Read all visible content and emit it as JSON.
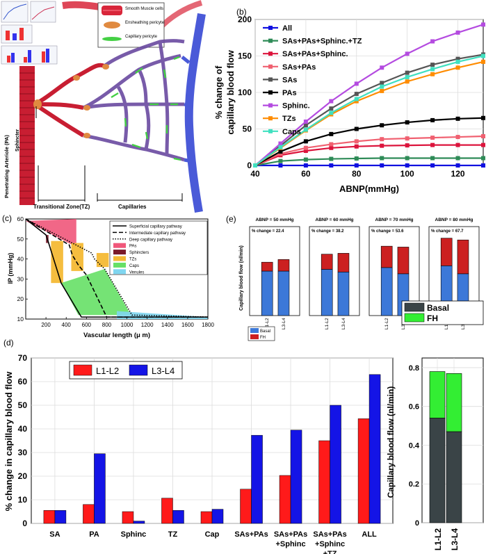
{
  "colors": {
    "all": "#1010e0",
    "sas_pas_sph_tz": "#2e8b57",
    "sas_pas_sph": "#dc143c",
    "sas_pas": "#f06070",
    "sas": "#555555",
    "pas": "#000000",
    "sphinc": "#b44be0",
    "tzs": "#ff8c00",
    "caps": "#40e0c0",
    "red": "#ff1a1a",
    "blue": "#1414e6",
    "basal_e": "#3c78d8",
    "fh_e": "#cc2020",
    "basal_f": "#3a4447",
    "fh_f": "#33ee33",
    "pa_fill": "#f0577a",
    "sph_fill": "#7a1a2a",
    "tz_fill": "#f4b935",
    "cap_fill": "#66e066",
    "ven_fill": "#7fd6f0"
  },
  "panel_a": {
    "labels": {
      "smooth": "Smooth Muscle cells",
      "ensheath": "Ensheathing pericyte",
      "cap_peri": "Capillary pericyte",
      "pa": "Penetrating Arteriole (PA)",
      "sphincter": "Sphincter",
      "tz": "Transitional Zone(TZ)",
      "caps": "Capillaries"
    }
  },
  "panel_b": {
    "letter": "(b)",
    "chart_data": {
      "type": "line",
      "xlabel": "ABNP(mmHg)",
      "ylabel_1": "% change of",
      "ylabel_2": "capillary blood flow",
      "xlim": [
        40,
        130
      ],
      "ylim": [
        0,
        200
      ],
      "xticks": [
        "40",
        "60",
        "80",
        "100",
        "120"
      ],
      "yticks": [
        "0",
        "50",
        "100",
        "150",
        "200"
      ],
      "x": [
        40,
        50,
        60,
        70,
        80,
        90,
        100,
        110,
        120,
        130
      ],
      "series": [
        {
          "name": "All",
          "color": "#1010e0",
          "marker": "square",
          "values": [
            0,
            0,
            0,
            0,
            0,
            0,
            0,
            0,
            0,
            0
          ]
        },
        {
          "name": "SAs+PAs+Sphinc.+TZ",
          "color": "#2e8b57",
          "marker": "square",
          "values": [
            0,
            6,
            8,
            9,
            9.5,
            10,
            10,
            10,
            10,
            10
          ]
        },
        {
          "name": "SAs+PAs+Sphinc.",
          "color": "#dc143c",
          "marker": "square",
          "values": [
            0,
            14,
            20,
            24,
            26,
            27,
            27.5,
            28,
            28,
            28
          ]
        },
        {
          "name": "SAs+PAs",
          "color": "#f06070",
          "marker": "square",
          "values": [
            0,
            16,
            24,
            29,
            33,
            36,
            37,
            38,
            39,
            40
          ]
        },
        {
          "name": "SAs",
          "color": "#555555",
          "marker": "square",
          "values": [
            0,
            27,
            55,
            78,
            98,
            113,
            127,
            138,
            146,
            152
          ]
        },
        {
          "name": "PAs",
          "color": "#000000",
          "marker": "square",
          "values": [
            0,
            19,
            33,
            43,
            50,
            55,
            59,
            62,
            64,
            65
          ]
        },
        {
          "name": "Sphinc.",
          "color": "#b44be0",
          "marker": "square",
          "values": [
            0,
            30,
            60,
            88,
            112,
            134,
            153,
            170,
            182,
            193
          ]
        },
        {
          "name": "TZs",
          "color": "#ff8c00",
          "marker": "square",
          "values": [
            0,
            24,
            48,
            70,
            88,
            102,
            115,
            125,
            134,
            142
          ]
        },
        {
          "name": "Caps",
          "color": "#40e0c0",
          "marker": "square",
          "values": [
            0,
            25,
            49,
            72,
            91,
            108,
            121,
            132,
            142,
            150
          ]
        }
      ]
    }
  },
  "panel_c": {
    "letter": "(c)",
    "chart_data": {
      "type": "line",
      "xlabel": "Vascular length (μ m)",
      "ylabel": "IP (mmHg)",
      "xlim": [
        0,
        1800
      ],
      "ylim": [
        10,
        60
      ],
      "xticks": [
        "200",
        "400",
        "600",
        "800",
        "1000",
        "1200",
        "1400",
        "1600",
        "1800"
      ],
      "yticks": [
        "10",
        "20",
        "30",
        "40",
        "50",
        "60"
      ],
      "regions": [
        {
          "name": "PAs",
          "color": "#f0577a",
          "points": [
            [
              0,
              59
            ],
            [
              500,
              70
            ],
            [
              500,
              46
            ]
          ]
        },
        {
          "name": "Sphincters",
          "color": "#7a1a2a",
          "points": [
            [
              200,
              52
            ],
            [
              225,
              52
            ],
            [
              225,
              48
            ],
            [
              200,
              48
            ]
          ]
        },
        {
          "name": "TZs",
          "color": "#f4b935",
          "boxes": [
            [
              250,
              28,
              370,
              49
            ],
            [
              450,
              34,
              570,
              48
            ],
            [
              700,
              36,
              820,
              43
            ]
          ]
        },
        {
          "name": "Caps",
          "color": "#66e066",
          "points": [
            [
              350,
              28
            ],
            [
              780,
              35
            ],
            [
              1040,
              12
            ],
            [
              520,
              12
            ]
          ]
        },
        {
          "name": "Venules",
          "color": "#7fd6f0",
          "points": [
            [
              900,
              14
            ],
            [
              1800,
              11
            ],
            [
              1800,
              10
            ],
            [
              900,
              10
            ]
          ]
        }
      ],
      "series": [
        {
          "name": "Superficial capillary pathway",
          "dash": "solid",
          "x": [
            0,
            200,
            220,
            350,
            550,
            1800
          ],
          "y": [
            60,
            52,
            49,
            28,
            11,
            11
          ]
        },
        {
          "name": "Intermediate capillary pathway",
          "dash": "dashed",
          "x": [
            0,
            430,
            460,
            520,
            600,
            800,
            1800
          ],
          "y": [
            60,
            47,
            42,
            37,
            32,
            11,
            11
          ]
        },
        {
          "name": "Deep capillary pathway",
          "dash": "dotted",
          "x": [
            0,
            650,
            680,
            780,
            1050,
            1800
          ],
          "y": [
            60,
            43,
            40,
            35,
            12,
            11
          ]
        }
      ]
    }
  },
  "panel_d": {
    "letter": "(d)",
    "chart_data": {
      "type": "bar",
      "ylabel": "% change in capillary blood flow",
      "ylim": [
        0,
        70
      ],
      "yticks": [
        "0",
        "10",
        "20",
        "30",
        "40",
        "50",
        "60",
        "70"
      ],
      "categories": [
        "SA",
        "PA",
        "Sphinc",
        "TZ",
        "Cap",
        "SAs+PAs",
        "SAs+PAs\n+Sphinc",
        "SAs+PAs\n+Sphinc\n+TZ",
        "ALL"
      ],
      "series": [
        {
          "name": "L1-L2",
          "color": "#ff1a1a",
          "values": [
            5.5,
            8,
            5,
            10.7,
            5,
            14.5,
            20.3,
            35,
            44.3
          ]
        },
        {
          "name": "L3-L4",
          "color": "#1414e6",
          "values": [
            5.5,
            29.5,
            1,
            5.5,
            6,
            37.3,
            39.5,
            50,
            63
          ]
        }
      ]
    }
  },
  "panel_e": {
    "letter": "(e)",
    "chart_data": {
      "type": "bar",
      "stacked": true,
      "ylabel": "Capillary blood flow (nl/min)",
      "categories": [
        "L1-L2",
        "L3-L4"
      ],
      "legend": [
        "Basal",
        "FH"
      ],
      "subplots": [
        {
          "title": "ABNP = 50 mmHg",
          "change": "% change = 22.4",
          "basal": [
            0.5,
            0.5
          ],
          "fh": [
            0.1,
            0.13
          ]
        },
        {
          "title": "ABNP = 60 mmHg",
          "change": "% change = 38.2",
          "basal": [
            0.52,
            0.49
          ],
          "fh": [
            0.17,
            0.21
          ]
        },
        {
          "title": "ABNP = 70 mmHg",
          "change": "% change = 53.6",
          "basal": [
            0.54,
            0.47
          ],
          "fh": [
            0.24,
            0.3
          ]
        },
        {
          "title": "ABNP = 80 mmHg",
          "change": "% change = 67.7",
          "basal": [
            0.56,
            0.47
          ],
          "fh": [
            0.31,
            0.38
          ]
        }
      ]
    }
  },
  "panel_f": {
    "chart_data": {
      "type": "bar",
      "stacked": true,
      "ylabel": "Capillary blood flow (nl/min)",
      "ylim": [
        0,
        0.85
      ],
      "yticks": [
        "0",
        "0.2",
        "0.4",
        "0.6",
        "0.8"
      ],
      "categories": [
        "L1-L2",
        "L3-L4"
      ],
      "series": [
        {
          "name": "Basal",
          "color": "#3a4447",
          "values": [
            0.54,
            0.47
          ]
        },
        {
          "name": "FH",
          "color": "#33ee33",
          "values": [
            0.24,
            0.3
          ]
        }
      ]
    }
  }
}
